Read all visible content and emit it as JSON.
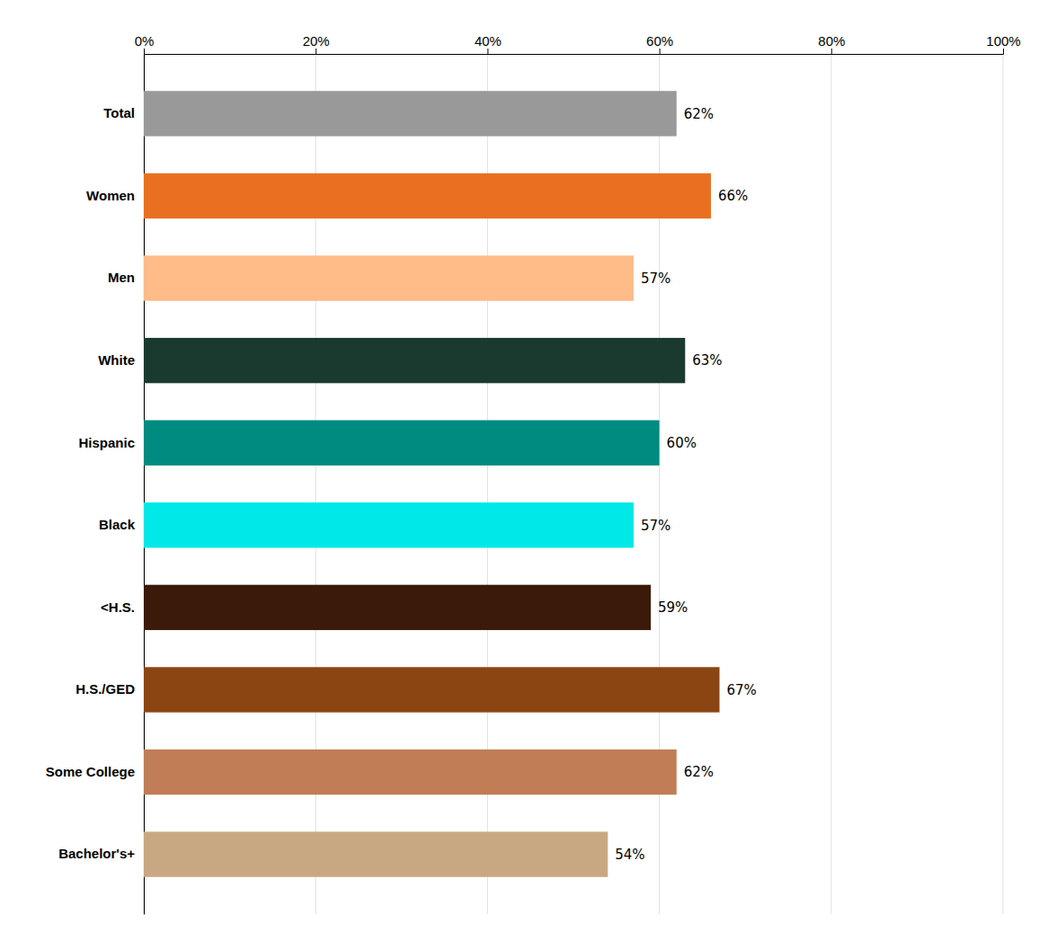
{
  "chart_data": {
    "type": "bar",
    "orientation": "horizontal",
    "categories": [
      "Bachelor's+",
      "Some College",
      "H.S./GED",
      "<H.S.",
      "Black",
      "Hispanic",
      "White",
      "Men",
      "Women",
      "Total"
    ],
    "values": [
      54,
      62,
      67,
      59,
      57,
      60,
      63,
      57,
      66,
      62
    ],
    "value_labels": [
      "54%",
      "62%",
      "67%",
      "59%",
      "57%",
      "60%",
      "63%",
      "57%",
      "66%",
      "62%"
    ],
    "colors": [
      "#c8a882",
      "#c07d56",
      "#8b4513",
      "#3b1a0a",
      "#00e8e8",
      "#008b80",
      "#1a3a30",
      "#ffbb88",
      "#e87020",
      "#999999"
    ],
    "xlim": [
      0,
      100
    ],
    "xticks": [
      {
        "value": 0,
        "label": "0%"
      },
      {
        "value": 20,
        "label": "20%"
      },
      {
        "value": 40,
        "label": "40%"
      },
      {
        "value": 60,
        "label": "60%"
      },
      {
        "value": 80,
        "label": "80%"
      },
      {
        "value": 100,
        "label": "100%"
      }
    ],
    "grid": true,
    "data_labels": true
  }
}
